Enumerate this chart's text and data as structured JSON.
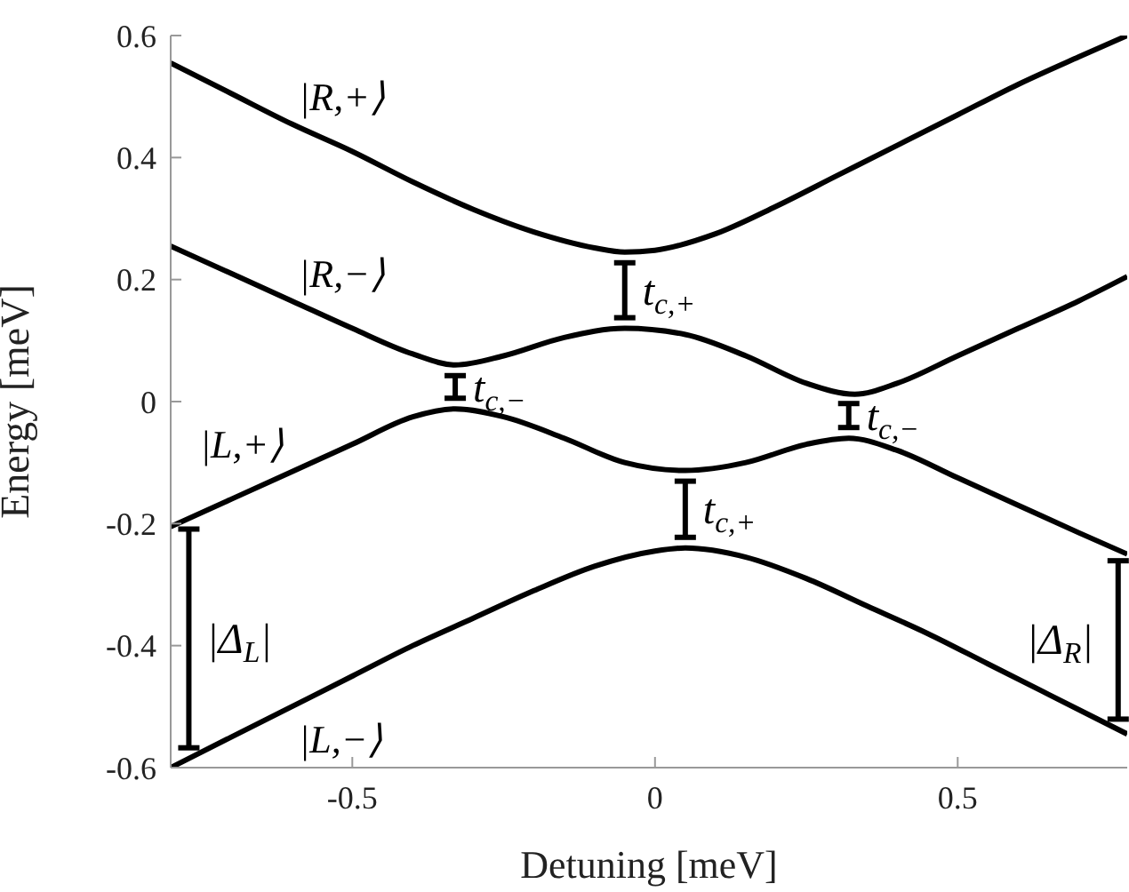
{
  "chart_data": {
    "type": "line",
    "xlabel": "Detuning [meV]",
    "ylabel": "Energy [meV]",
    "xlim": [
      -0.8,
      0.78
    ],
    "xticks": [
      -0.5,
      0,
      0.5
    ],
    "ylim": [
      -0.6,
      0.6
    ],
    "yticks": [
      -0.6,
      -0.4,
      -0.2,
      0,
      0.2,
      0.4,
      0.6
    ],
    "grid": false,
    "legend": false,
    "marker": "none",
    "line_style": "solid",
    "series": [
      {
        "name": "|R,+⟩",
        "color": "#000000",
        "x": [
          -0.8,
          -0.7,
          -0.6,
          -0.5,
          -0.4,
          -0.3,
          -0.2,
          -0.1,
          -0.05,
          0,
          0.1,
          0.2,
          0.3,
          0.4,
          0.5,
          0.6,
          0.7,
          0.78
        ],
        "values": [
          0.555,
          0.505,
          0.455,
          0.41,
          0.36,
          0.315,
          0.278,
          0.252,
          0.245,
          0.248,
          0.275,
          0.32,
          0.37,
          0.42,
          0.47,
          0.52,
          0.565,
          0.6
        ]
      },
      {
        "name": "|R,−⟩",
        "color": "#000000",
        "x": [
          -0.8,
          -0.7,
          -0.6,
          -0.5,
          -0.4,
          -0.33,
          -0.25,
          -0.15,
          -0.05,
          0.05,
          0.15,
          0.25,
          0.33,
          0.4,
          0.5,
          0.6,
          0.7,
          0.78
        ],
        "values": [
          0.255,
          0.21,
          0.165,
          0.12,
          0.078,
          0.06,
          0.075,
          0.105,
          0.12,
          0.11,
          0.075,
          0.03,
          0.012,
          0.03,
          0.075,
          0.12,
          0.165,
          0.205
        ]
      },
      {
        "name": "|L,+⟩",
        "color": "#000000",
        "x": [
          -0.8,
          -0.7,
          -0.6,
          -0.5,
          -0.4,
          -0.33,
          -0.25,
          -0.15,
          -0.05,
          0.05,
          0.15,
          0.25,
          0.32,
          0.4,
          0.5,
          0.6,
          0.7,
          0.78
        ],
        "values": [
          -0.205,
          -0.16,
          -0.115,
          -0.07,
          -0.025,
          -0.012,
          -0.025,
          -0.06,
          -0.1,
          -0.113,
          -0.1,
          -0.07,
          -0.06,
          -0.08,
          -0.125,
          -0.17,
          -0.215,
          -0.25
        ]
      },
      {
        "name": "|L,−⟩",
        "color": "#000000",
        "x": [
          -0.8,
          -0.7,
          -0.6,
          -0.5,
          -0.4,
          -0.3,
          -0.2,
          -0.1,
          0,
          0.05,
          0.15,
          0.25,
          0.35,
          0.45,
          0.55,
          0.65,
          0.78
        ],
        "values": [
          -0.6,
          -0.55,
          -0.5,
          -0.45,
          -0.4,
          -0.355,
          -0.31,
          -0.27,
          -0.245,
          -0.24,
          -0.255,
          -0.29,
          -0.335,
          -0.38,
          -0.43,
          -0.48,
          -0.545
        ]
      }
    ],
    "annotations": [
      {
        "text": "t$_{c,−}$",
        "x": -0.33,
        "y": -0.012
      },
      {
        "text": "t$_{c,+}$",
        "x": -0.05,
        "y": 0.12
      },
      {
        "text": "t$_{c,−}$",
        "x": 0.32,
        "y": -0.06
      },
      {
        "text": "t$_{c,+}$",
        "x": 0.05,
        "y": -0.24
      },
      {
        "text": "|Δ$_{L}$|",
        "x": -0.77,
        "y": -0.585
      },
      {
        "text": "|Δ$_{R}$|",
        "x": 0.765,
        "y": -0.538
      }
    ]
  }
}
